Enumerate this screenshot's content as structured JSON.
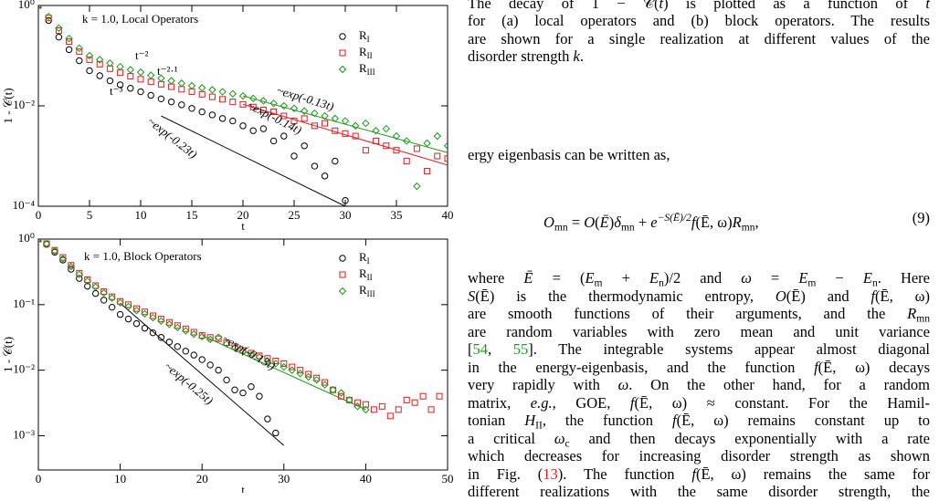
{
  "chart_data": [
    {
      "type": "scatter",
      "title": "k = 1.0, Local Operators",
      "x_label": "t",
      "y_label": "1 - 𝒞(t)",
      "xlim": [
        0,
        40
      ],
      "xticks": [
        0,
        5,
        10,
        15,
        20,
        25,
        30,
        35,
        40
      ],
      "ylim": [
        0.0001,
        1
      ],
      "y_scale": "log",
      "yticks": [
        {
          "value": 0.0001,
          "label": "10⁻⁴"
        },
        {
          "value": 0.01,
          "label": "10⁻²"
        },
        {
          "value": 1,
          "label": "10⁰"
        }
      ],
      "legend": "upper right",
      "series": [
        {
          "name": "R",
          "subscript": "I",
          "color": "#000000",
          "marker": "circle",
          "x": [
            0,
            1,
            2,
            3,
            4,
            5,
            6,
            7,
            8,
            9,
            10,
            11,
            12,
            13,
            14,
            15,
            16,
            17,
            18,
            19,
            20,
            21,
            22,
            23,
            24,
            25,
            26,
            27,
            28,
            29,
            30
          ],
          "values": [
            1,
            0.501,
            0.234,
            0.132,
            0.0794,
            0.0501,
            0.0398,
            0.0316,
            0.0263,
            0.0224,
            0.0191,
            0.0162,
            0.0138,
            0.012,
            0.0105,
            0.0089,
            0.0076,
            0.0066,
            0.0056,
            0.005,
            0.004,
            0.0032,
            0.0035,
            0.002,
            0.0025,
            0.001,
            0.0016,
            0.00063,
            0.0004,
            0.00079,
            0.00013
          ]
        },
        {
          "name": "R",
          "subscript": "II",
          "color": "#e8191c",
          "marker": "square",
          "x": [
            0,
            1,
            2,
            3,
            4,
            5,
            6,
            7,
            8,
            9,
            10,
            11,
            12,
            13,
            14,
            15,
            16,
            17,
            18,
            19,
            20,
            21,
            22,
            23,
            24,
            25,
            26,
            27,
            28,
            29,
            30,
            31,
            32,
            33,
            34,
            35,
            36,
            37,
            38,
            39,
            40
          ],
          "values": [
            1,
            0.562,
            0.316,
            0.191,
            0.12,
            0.0832,
            0.0676,
            0.055,
            0.0457,
            0.0389,
            0.0339,
            0.0302,
            0.0269,
            0.024,
            0.0214,
            0.0191,
            0.017,
            0.0151,
            0.0135,
            0.012,
            0.0107,
            0.0095,
            0.0083,
            0.0076,
            0.0063,
            0.005,
            0.0056,
            0.004,
            0.0045,
            0.0032,
            0.0028,
            0.0025,
            0.0013,
            0.002,
            0.0016,
            0.0013,
            0.00079,
            0.0014,
            0.0005,
            0.001,
            0.00089
          ]
        },
        {
          "name": "R",
          "subscript": "III",
          "color": "#1a9a1a",
          "marker": "diamond",
          "x": [
            0,
            1,
            2,
            3,
            4,
            5,
            6,
            7,
            8,
            9,
            10,
            11,
            12,
            13,
            14,
            15,
            16,
            17,
            18,
            19,
            20,
            21,
            22,
            23,
            24,
            25,
            26,
            27,
            28,
            29,
            30,
            31,
            32,
            33,
            34,
            35,
            36,
            37,
            38,
            39,
            40
          ],
          "values": [
            1,
            0.603,
            0.355,
            0.219,
            0.141,
            0.1,
            0.0832,
            0.0708,
            0.0603,
            0.0525,
            0.0468,
            0.0407,
            0.0355,
            0.0316,
            0.0282,
            0.0251,
            0.0229,
            0.0209,
            0.0191,
            0.0174,
            0.0158,
            0.0141,
            0.0126,
            0.0112,
            0.01,
            0.0089,
            0.0079,
            0.0071,
            0.0063,
            0.0056,
            0.005,
            0.004,
            0.0045,
            0.0032,
            0.0035,
            0.0025,
            0.002,
            0.00025,
            0.0018,
            0.0025,
            0.0016
          ]
        }
      ],
      "fits": [
        {
          "label": "~exp(-0.23t)",
          "color": "#000000",
          "label_color": "#000000",
          "x": [
            12,
            30
          ],
          "values": [
            0.0063,
            0.0001
          ]
        },
        {
          "label": "~exp(-0.14t)",
          "color": "#e8191c",
          "label_color": "#e8191c",
          "x": [
            20,
            40
          ],
          "values": [
            0.0107,
            0.00066
          ]
        },
        {
          "label": "~exp(-0.13t)",
          "color": "#1a9a1a",
          "label_color": "#1a9a1a",
          "x": [
            20,
            40
          ],
          "values": [
            0.0158,
            0.00117
          ]
        }
      ],
      "annotations": [
        {
          "text": "t⁻²",
          "color": "#1a9a1a"
        },
        {
          "text": "t⁻³",
          "color": "#000000"
        },
        {
          "text": "t⁻²·¹",
          "color": "#e8191c"
        }
      ]
    },
    {
      "type": "scatter",
      "title": "k = 1.0, Block Operators",
      "x_label": "t",
      "y_label": "1 - 𝒞(t)",
      "xlim": [
        0,
        50
      ],
      "xticks": [
        0,
        10,
        20,
        30,
        40,
        50
      ],
      "ylim": [
        0.0003,
        1
      ],
      "y_scale": "log",
      "yticks": [
        {
          "value": 1,
          "label": "10⁰"
        },
        {
          "value": 0.1,
          "label": "10⁻¹"
        },
        {
          "value": 0.01,
          "label": "10⁻²"
        },
        {
          "value": 0.001,
          "label": "10⁻³"
        }
      ],
      "legend": "upper right",
      "series": [
        {
          "name": "R",
          "subscript": "I",
          "color": "#000000",
          "marker": "circle",
          "x": [
            0,
            1,
            2,
            3,
            4,
            5,
            6,
            7,
            8,
            9,
            10,
            11,
            12,
            13,
            14,
            15,
            16,
            17,
            18,
            19,
            20,
            21,
            22,
            23,
            24,
            25,
            26,
            27,
            28,
            29
          ],
          "values": [
            1,
            0.832,
            0.631,
            0.479,
            0.347,
            0.251,
            0.191,
            0.148,
            0.117,
            0.0912,
            0.0708,
            0.0603,
            0.0513,
            0.0437,
            0.0372,
            0.0316,
            0.0269,
            0.0229,
            0.0195,
            0.017,
            0.0145,
            0.012,
            0.01,
            0.0071,
            0.005,
            0.0045,
            0.0056,
            0.004,
            0.0018,
            0.0011
          ]
        },
        {
          "name": "R",
          "subscript": "II",
          "color": "#e8191c",
          "marker": "square",
          "x": [
            0,
            1,
            2,
            3,
            4,
            5,
            6,
            7,
            8,
            9,
            10,
            11,
            12,
            13,
            14,
            15,
            16,
            17,
            18,
            19,
            20,
            21,
            22,
            23,
            24,
            25,
            26,
            27,
            28,
            29,
            30,
            31,
            32,
            33,
            34,
            35,
            36,
            37,
            38,
            39,
            40,
            41,
            42,
            43,
            44,
            45,
            46,
            47,
            48,
            49
          ],
          "values": [
            1,
            0.851,
            0.676,
            0.525,
            0.398,
            0.302,
            0.24,
            0.195,
            0.158,
            0.132,
            0.112,
            0.1,
            0.0871,
            0.0776,
            0.0676,
            0.0603,
            0.0537,
            0.0479,
            0.0427,
            0.038,
            0.0339,
            0.0316,
            0.0302,
            0.0263,
            0.0229,
            0.02,
            0.0182,
            0.0166,
            0.0151,
            0.0138,
            0.0126,
            0.0112,
            0.01,
            0.0087,
            0.0076,
            0.0065,
            0.005,
            0.004,
            0.0035,
            0.0032,
            0.003,
            0.0025,
            0.0028,
            0.002,
            0.0025,
            0.0035,
            0.0032,
            0.004,
            0.0025,
            0.004
          ]
        },
        {
          "name": "R",
          "subscript": "III",
          "color": "#1a9a1a",
          "marker": "diamond",
          "x": [
            0,
            1,
            2,
            3,
            4,
            5,
            6,
            7,
            8,
            9,
            10,
            11,
            12,
            13,
            14,
            15,
            16,
            17,
            18,
            19,
            20,
            21,
            22,
            23,
            24,
            25,
            26,
            27,
            28,
            29,
            30,
            31,
            32,
            33,
            34,
            35,
            36,
            37,
            38,
            39,
            40
          ],
          "values": [
            1,
            0.851,
            0.661,
            0.501,
            0.38,
            0.288,
            0.229,
            0.186,
            0.151,
            0.126,
            0.107,
            0.0933,
            0.0813,
            0.0724,
            0.0631,
            0.0562,
            0.0501,
            0.0447,
            0.0398,
            0.0355,
            0.0324,
            0.0295,
            0.0316,
            0.0251,
            0.0219,
            0.0191,
            0.017,
            0.0158,
            0.0138,
            0.0126,
            0.0112,
            0.01,
            0.0089,
            0.0079,
            0.0071,
            0.006,
            0.005,
            0.0045,
            0.0035,
            0.0028,
            0.0025
          ]
        }
      ],
      "fits": [
        {
          "label": "~exp(-0.25t)",
          "color": "#000000",
          "label_color": "#000000",
          "x": [
            10,
            30
          ],
          "values": [
            0.105,
            0.00071
          ]
        },
        {
          "label": "~exp(-0.13t)",
          "color": "#1a9a1a",
          "label_color": "#000000",
          "x": [
            20,
            40
          ],
          "values": [
            0.0339,
            0.0025
          ]
        }
      ],
      "annotations": []
    }
  ],
  "caption": {
    "lines": [
      [
        {
          "text": "The decay of 1 − 𝒞("
        },
        {
          "text": "t",
          "style": "italic"
        },
        {
          "text": ") is plotted as a function of "
        },
        {
          "text": "t",
          "style": "italic"
        }
      ],
      [
        {
          "text": "for (a) local operators and (b) block operators. The results"
        }
      ],
      [
        {
          "text": "are shown for a single realization at different values of the"
        }
      ],
      [
        {
          "text": "disorder strength "
        },
        {
          "text": "k",
          "style": "italic"
        },
        {
          "text": "."
        }
      ]
    ]
  },
  "lead_in": "ergy eigenbasis can be written as,",
  "equation": {
    "segments": [
      {
        "text": "O",
        "style": "italic"
      },
      {
        "text": "mn",
        "style": "sub"
      },
      {
        "text": " = "
      },
      {
        "text": "O",
        "style": "italic"
      },
      {
        "text": "("
      },
      {
        "text": "Ē",
        "style": "italic"
      },
      {
        "text": ")"
      },
      {
        "text": "δ",
        "style": "italic"
      },
      {
        "text": "mn",
        "style": "sub"
      },
      {
        "text": " + "
      },
      {
        "text": "e",
        "style": "italic"
      },
      {
        "text": "−S(Ē)/2",
        "style": "sup"
      },
      {
        "text": "f",
        "style": "italic"
      },
      {
        "text": "(Ē, ω)"
      },
      {
        "text": "R",
        "style": "italic"
      },
      {
        "text": "mn",
        "style": "sub"
      },
      {
        "text": ","
      }
    ],
    "number": "(9)"
  },
  "paragraph": {
    "lines": [
      [
        {
          "text": "where "
        },
        {
          "text": "Ē",
          "style": "italic"
        },
        {
          "text": " = ("
        },
        {
          "text": "E",
          "style": "italic"
        },
        {
          "text": "m",
          "style": "sub"
        },
        {
          "text": " + "
        },
        {
          "text": "E",
          "style": "italic"
        },
        {
          "text": "n",
          "style": "sub"
        },
        {
          "text": ")/2 and "
        },
        {
          "text": "ω",
          "style": "italic"
        },
        {
          "text": " = "
        },
        {
          "text": "E",
          "style": "italic"
        },
        {
          "text": "m",
          "style": "sub"
        },
        {
          "text": " − "
        },
        {
          "text": "E",
          "style": "italic"
        },
        {
          "text": "n",
          "style": "sub"
        },
        {
          "text": ". Here"
        }
      ],
      [
        {
          "text": "S",
          "style": "italic"
        },
        {
          "text": "(Ē) is the thermodynamic entropy, "
        },
        {
          "text": "O",
          "style": "italic"
        },
        {
          "text": "(Ē) and "
        },
        {
          "text": "f",
          "style": "italic"
        },
        {
          "text": "(Ē, ω)"
        }
      ],
      [
        {
          "text": "are smooth functions of their arguments, and the "
        },
        {
          "text": "R",
          "style": "italic"
        },
        {
          "text": "mn",
          "style": "sub"
        }
      ],
      [
        {
          "text": "are random variables with zero mean and unit variance"
        }
      ],
      [
        {
          "text": "["
        },
        {
          "text": "54",
          "color": "#1a9a1a"
        },
        {
          "text": ", "
        },
        {
          "text": "55",
          "color": "#1a9a1a"
        },
        {
          "text": "]. The integrable systems appear almost diagonal"
        }
      ],
      [
        {
          "text": "in the energy-eigenbasis, and the function "
        },
        {
          "text": "f",
          "style": "italic"
        },
        {
          "text": "(Ē, ω) decays"
        }
      ],
      [
        {
          "text": "very rapidly with "
        },
        {
          "text": "ω",
          "style": "italic"
        },
        {
          "text": ". On the other hand, for a random"
        }
      ],
      [
        {
          "text": "matrix, "
        },
        {
          "text": "e.g.",
          "style": "italic"
        },
        {
          "text": ", GOE, "
        },
        {
          "text": "f",
          "style": "italic"
        },
        {
          "text": "(Ē, ω) ≈ constant. For the Hamil-"
        }
      ],
      [
        {
          "text": "tonian "
        },
        {
          "text": "H",
          "style": "italic"
        },
        {
          "text": "II",
          "style": "sub"
        },
        {
          "text": ", the function "
        },
        {
          "text": "f",
          "style": "italic"
        },
        {
          "text": "(Ē, ω) remains constant up to"
        }
      ],
      [
        {
          "text": "a critical "
        },
        {
          "text": "ω",
          "style": "italic"
        },
        {
          "text": "c",
          "style": "sub"
        },
        {
          "text": " and then decays exponentially with a rate"
        }
      ],
      [
        {
          "text": "which decreases for increasing disorder strength as shown"
        }
      ],
      [
        {
          "text": "in Fig. ("
        },
        {
          "text": "13",
          "color": "#e8191c"
        },
        {
          "text": "). The function "
        },
        {
          "text": "f",
          "style": "italic"
        },
        {
          "text": "(Ē, ω) remains the same for"
        }
      ],
      [
        {
          "text": "different realizations with the same disorder strength, the"
        }
      ]
    ]
  }
}
